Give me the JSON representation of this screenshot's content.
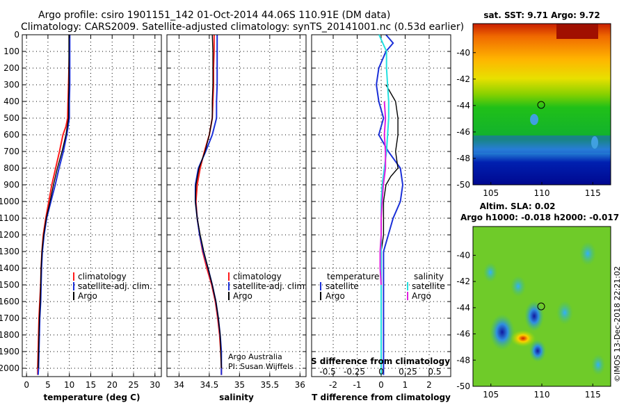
{
  "title": {
    "line1": "Argo profile: csiro 1901151_142 01-Oct-2014 44.06S 110.91E (DM data)",
    "line2": "Climatology: CARS2009. Satellite-adjusted climatology: synTS_20141001.nc (0.53d earlier)"
  },
  "colors": {
    "climatology": "#ff1a1a",
    "satellite": "#1a2fd8",
    "argo": "#000000",
    "sal_satellite": "#22e0e0",
    "sal_argo": "#e020e0"
  },
  "depth_axis": {
    "ticks": [
      0,
      100,
      200,
      300,
      400,
      500,
      600,
      700,
      800,
      900,
      1000,
      1100,
      1200,
      1300,
      1400,
      1500,
      1600,
      1700,
      1800,
      1900,
      2000
    ]
  },
  "legend_labels": {
    "climatology": "climatology",
    "satellite_adj": "satellite-adj. clim.",
    "argo": "Argo"
  },
  "chart_data": [
    {
      "type": "line",
      "xlabel": "temperature (deg C)",
      "xlim": [
        -1,
        31.5
      ],
      "xticks": [
        0,
        5,
        10,
        15,
        20,
        25,
        30
      ],
      "ylim": [
        2050,
        0
      ],
      "series": [
        {
          "name": "climatology",
          "points": [
            [
              10,
              0
            ],
            [
              10,
              100
            ],
            [
              9.9,
              200
            ],
            [
              9.8,
              300
            ],
            [
              9.7,
              400
            ],
            [
              9.6,
              500
            ],
            [
              9.2,
              550
            ],
            [
              8.5,
              600
            ],
            [
              7.7,
              700
            ],
            [
              6.8,
              800
            ],
            [
              5.9,
              900
            ],
            [
              5.2,
              1000
            ],
            [
              4.5,
              1100
            ],
            [
              3.9,
              1200
            ],
            [
              3.6,
              1300
            ],
            [
              3.4,
              1400
            ],
            [
              3.3,
              1500
            ],
            [
              3.1,
              1600
            ],
            [
              2.9,
              1700
            ],
            [
              2.8,
              1800
            ],
            [
              2.7,
              1900
            ],
            [
              2.6,
              2000
            ],
            [
              2.6,
              2040
            ]
          ]
        },
        {
          "name": "satellite-adj. clim.",
          "points": [
            [
              10.1,
              0
            ],
            [
              10.1,
              100
            ],
            [
              10.1,
              200
            ],
            [
              10.1,
              300
            ],
            [
              10,
              400
            ],
            [
              10,
              500
            ],
            [
              9.4,
              600
            ],
            [
              8.6,
              700
            ],
            [
              7.6,
              800
            ],
            [
              6.7,
              900
            ],
            [
              5.7,
              1000
            ],
            [
              4.7,
              1100
            ],
            [
              4.1,
              1200
            ],
            [
              3.7,
              1300
            ],
            [
              3.5,
              1400
            ],
            [
              3.4,
              1500
            ],
            [
              3.3,
              1600
            ],
            [
              3.1,
              1700
            ],
            [
              3.0,
              1800
            ],
            [
              2.9,
              1900
            ],
            [
              2.8,
              2000
            ],
            [
              2.7,
              2040
            ]
          ]
        },
        {
          "name": "Argo",
          "points": [
            [
              9.9,
              0
            ],
            [
              9.9,
              100
            ],
            [
              9.9,
              200
            ],
            [
              9.9,
              300
            ],
            [
              9.8,
              400
            ],
            [
              9.8,
              500
            ],
            [
              9.2,
              600
            ],
            [
              8.3,
              700
            ],
            [
              7.2,
              800
            ],
            [
              6.3,
              900
            ],
            [
              5.5,
              1000
            ],
            [
              4.6,
              1100
            ],
            [
              4.0,
              1200
            ],
            [
              3.6,
              1300
            ],
            [
              3.4,
              1400
            ],
            [
              3.3,
              1500
            ],
            [
              3.2,
              1600
            ],
            [
              3.0,
              1700
            ],
            [
              2.9,
              1800
            ],
            [
              2.8,
              1900
            ],
            [
              2.7,
              2000
            ]
          ]
        }
      ]
    },
    {
      "type": "line",
      "xlabel": "salinity",
      "xlim": [
        33.8,
        36.1
      ],
      "xticks": [
        34,
        34.5,
        35,
        35.5,
        36
      ],
      "xticklabels": [
        "34",
        "34.5",
        "35",
        "35.5",
        "36"
      ],
      "ylim": [
        2050,
        0
      ],
      "series": [
        {
          "name": "climatology",
          "points": [
            [
              34.58,
              0
            ],
            [
              34.58,
              100
            ],
            [
              34.57,
              200
            ],
            [
              34.57,
              300
            ],
            [
              34.56,
              400
            ],
            [
              34.55,
              500
            ],
            [
              34.5,
              600
            ],
            [
              34.42,
              700
            ],
            [
              34.35,
              800
            ],
            [
              34.3,
              900
            ],
            [
              34.28,
              1000
            ],
            [
              34.3,
              1100
            ],
            [
              34.34,
              1200
            ],
            [
              34.39,
              1300
            ],
            [
              34.46,
              1400
            ],
            [
              34.54,
              1500
            ],
            [
              34.6,
              1600
            ],
            [
              34.64,
              1700
            ],
            [
              34.67,
              1800
            ],
            [
              34.69,
              1900
            ],
            [
              34.7,
              2000
            ],
            [
              34.7,
              2040
            ]
          ]
        },
        {
          "name": "satellite-adj. clim.",
          "points": [
            [
              34.63,
              0
            ],
            [
              34.63,
              100
            ],
            [
              34.63,
              200
            ],
            [
              34.63,
              300
            ],
            [
              34.62,
              400
            ],
            [
              34.62,
              500
            ],
            [
              34.55,
              600
            ],
            [
              34.44,
              700
            ],
            [
              34.32,
              800
            ],
            [
              34.27,
              900
            ],
            [
              34.27,
              1000
            ],
            [
              34.3,
              1100
            ],
            [
              34.34,
              1200
            ],
            [
              34.4,
              1300
            ],
            [
              34.48,
              1400
            ],
            [
              34.55,
              1500
            ],
            [
              34.61,
              1600
            ],
            [
              34.65,
              1700
            ],
            [
              34.68,
              1800
            ],
            [
              34.7,
              1900
            ],
            [
              34.7,
              2000
            ],
            [
              34.7,
              2040
            ]
          ]
        },
        {
          "name": "Argo",
          "points": [
            [
              34.55,
              0
            ],
            [
              34.56,
              100
            ],
            [
              34.56,
              200
            ],
            [
              34.56,
              300
            ],
            [
              34.55,
              400
            ],
            [
              34.55,
              500
            ],
            [
              34.5,
              600
            ],
            [
              34.43,
              700
            ],
            [
              34.33,
              800
            ],
            [
              34.28,
              900
            ],
            [
              34.27,
              1000
            ],
            [
              34.3,
              1100
            ],
            [
              34.35,
              1200
            ],
            [
              34.41,
              1300
            ],
            [
              34.48,
              1400
            ],
            [
              34.55,
              1500
            ],
            [
              34.61,
              1600
            ],
            [
              34.65,
              1700
            ],
            [
              34.68,
              1800
            ],
            [
              34.69,
              1900
            ],
            [
              34.7,
              2000
            ]
          ]
        }
      ]
    },
    {
      "type": "line",
      "xlabel": "T difference from climatology",
      "xlim": [
        -2.9,
        2.9
      ],
      "xticks": [
        -2,
        -1,
        0,
        1,
        2
      ],
      "ylim": [
        2050,
        0
      ],
      "series": [
        {
          "name": "satellite",
          "points": [
            [
              0.2,
              0
            ],
            [
              0.5,
              50
            ],
            [
              0.2,
              100
            ],
            [
              -0.1,
              200
            ],
            [
              -0.2,
              300
            ],
            [
              -0.1,
              400
            ],
            [
              0.1,
              500
            ],
            [
              -0.1,
              600
            ],
            [
              0.3,
              700
            ],
            [
              0.8,
              800
            ],
            [
              0.9,
              900
            ],
            [
              0.8,
              1000
            ],
            [
              0.5,
              1100
            ],
            [
              0.3,
              1200
            ],
            [
              0.1,
              1300
            ],
            [
              0.1,
              1400
            ],
            [
              0.1,
              1500
            ],
            [
              0.1,
              1600
            ],
            [
              0.1,
              1700
            ],
            [
              0.1,
              1800
            ],
            [
              0.1,
              1900
            ],
            [
              0.1,
              2000
            ],
            [
              0.1,
              2040
            ]
          ]
        },
        {
          "name": "Argo",
          "points": [
            [
              0.2,
              300
            ],
            [
              0.6,
              400
            ],
            [
              0.7,
              500
            ],
            [
              0.7,
              600
            ],
            [
              0.6,
              700
            ],
            [
              0.7,
              800
            ],
            [
              0.4,
              850
            ],
            [
              0.2,
              900
            ],
            [
              0.1,
              1000
            ],
            [
              0.1,
              1100
            ],
            [
              0.1,
              1200
            ],
            [
              0.0,
              1300
            ],
            [
              0.0,
              1400
            ],
            [
              0.0,
              1500
            ],
            [
              0.0,
              1600
            ],
            [
              0.0,
              1700
            ],
            [
              0.0,
              1800
            ],
            [
              0.0,
              1900
            ],
            [
              0.0,
              2000
            ]
          ]
        }
      ]
    }
  ],
  "salinity_diff": {
    "xlabel": "S difference from climatology",
    "xlim": [
      -0.65,
      0.65
    ],
    "xticks": [
      -0.5,
      -0.25,
      0,
      0.25,
      0.5
    ],
    "xticklabels": [
      "-0.5",
      "-0.25",
      "0",
      "0.25",
      "0.5"
    ],
    "series": [
      {
        "name": "satellite",
        "points": [
          [
            -0.02,
            0
          ],
          [
            0.05,
            100
          ],
          [
            0.05,
            200
          ],
          [
            0.06,
            300
          ],
          [
            0.07,
            400
          ],
          [
            0.07,
            500
          ],
          [
            0.06,
            600
          ],
          [
            0.05,
            700
          ],
          [
            0.03,
            800
          ],
          [
            0.01,
            900
          ],
          [
            0.0,
            1000
          ],
          [
            0.0,
            1100
          ],
          [
            0.0,
            1200
          ],
          [
            0.0,
            1300
          ],
          [
            0.0,
            1400
          ],
          [
            0.0,
            1500
          ],
          [
            0.0,
            1600
          ],
          [
            0.0,
            1700
          ],
          [
            0.0,
            1800
          ],
          [
            0.0,
            1900
          ],
          [
            0.0,
            2040
          ]
        ]
      },
      {
        "name": "Argo",
        "points": [
          [
            0.03,
            400
          ],
          [
            0.04,
            500
          ],
          [
            0.03,
            600
          ],
          [
            0.04,
            700
          ],
          [
            0.04,
            800
          ],
          [
            0.02,
            900
          ],
          [
            0.01,
            1000
          ],
          [
            0.0,
            1100
          ],
          [
            0.0,
            1200
          ],
          [
            -0.01,
            1300
          ],
          [
            -0.01,
            1400
          ],
          [
            0.0,
            1500
          ]
        ]
      }
    ]
  },
  "diff_legend": {
    "temperature_header": "temperature",
    "salinity_header": "salinity",
    "t_satellite": "satellite",
    "t_argo": "Argo",
    "s_satellite": "satellite",
    "s_argo": "Argo"
  },
  "credit": {
    "line1": "Argo Australia",
    "line2": "PI: Susan Wijffels"
  },
  "map1": {
    "title": "sat. SST: 9.71 Argo: 9.72",
    "xticks": [
      "105",
      "110",
      "115"
    ],
    "yticks": [
      "-40",
      "-42",
      "-44",
      "-46",
      "-48",
      "-50"
    ]
  },
  "map2": {
    "title1": "Altim. SLA: 0.02",
    "title2": "Argo h1000: -0.018 h2000: -0.017",
    "xticks": [
      "105",
      "110",
      "115"
    ],
    "yticks": [
      "-40",
      "-42",
      "-44",
      "-46",
      "-48",
      "-50"
    ]
  },
  "stamp": "©IMOS 13-Dec-2018 22:21:02"
}
